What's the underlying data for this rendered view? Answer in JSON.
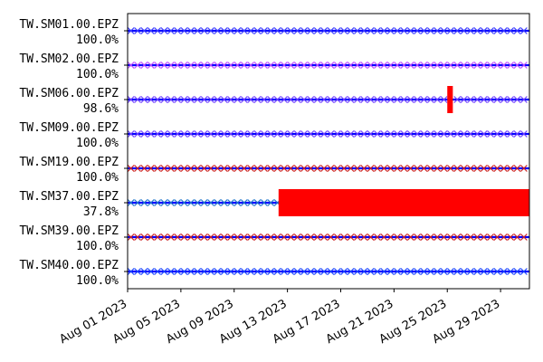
{
  "chart_data": {
    "type": "availability-timeline",
    "x_axis": {
      "type": "date",
      "range": [
        "2023-08-01",
        "2023-08-31T04:00"
      ],
      "ticks": [
        "Aug 01 2023",
        "Aug 05 2023",
        "Aug 09 2023",
        "Aug 13 2023",
        "Aug 17 2023",
        "Aug 21 2023",
        "Aug 25 2023",
        "Aug 29 2023"
      ],
      "tick_dates": [
        "2023-08-01",
        "2023-08-05",
        "2023-08-09",
        "2023-08-13",
        "2023-08-17",
        "2023-08-21",
        "2023-08-25",
        "2023-08-29"
      ],
      "tick_label_rotation_deg": -30
    },
    "grid": false,
    "colors": {
      "availability_line": "#0000ff",
      "gap": "#ff0000"
    },
    "series": [
      {
        "name": "TW.SM01.00.EPZ",
        "availability": "100.0%",
        "marker_color": "#3c3cff",
        "marker_end": "2023-08-30T23:00",
        "gaps": []
      },
      {
        "name": "TW.SM02.00.EPZ",
        "availability": "100.0%",
        "marker_color": "#c04bff",
        "marker_end": "2023-08-30T23:00",
        "gaps": []
      },
      {
        "name": "TW.SM06.00.EPZ",
        "availability": "98.6%",
        "marker_color": "#7040ff",
        "marker_end": "2023-08-30T23:00",
        "gaps": [
          {
            "start": "2023-08-25T00:00",
            "end": "2023-08-25T10:00"
          }
        ]
      },
      {
        "name": "TW.SM09.00.EPZ",
        "availability": "100.0%",
        "marker_color": "#7040ff",
        "marker_end": "2023-08-30T23:00",
        "gaps": []
      },
      {
        "name": "TW.SM19.00.EPZ",
        "availability": "100.0%",
        "marker_color": "#cc2222",
        "marker_end": "2023-08-30T23:00",
        "gaps": []
      },
      {
        "name": "TW.SM37.00.EPZ",
        "availability": "37.8%",
        "marker_color": "#2277cc",
        "marker_end": "2023-08-12T06:00",
        "gaps": [
          {
            "start": "2023-08-12T08:00",
            "end": "2023-08-31T04:00"
          }
        ]
      },
      {
        "name": "TW.SM39.00.EPZ",
        "availability": "100.0%",
        "marker_color": "#cc2222",
        "marker_end": "2023-08-30T23:00",
        "gaps": []
      },
      {
        "name": "TW.SM40.00.EPZ",
        "availability": "100.0%",
        "marker_color": "#1a44ff",
        "marker_end": "2023-08-30T23:00",
        "gaps": []
      }
    ]
  }
}
